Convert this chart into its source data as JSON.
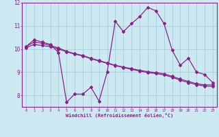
{
  "xlabel": "Windchill (Refroidissement éolien,°C)",
  "bg_color": "#cce8f0",
  "line_color": "#882288",
  "grid_color": "#aaccdd",
  "xlim": [
    -0.5,
    23.5
  ],
  "ylim": [
    7.5,
    12.0
  ],
  "yticks": [
    8,
    9,
    10,
    11,
    12
  ],
  "xticks": [
    0,
    1,
    2,
    3,
    4,
    5,
    6,
    7,
    8,
    9,
    10,
    11,
    12,
    13,
    14,
    15,
    16,
    17,
    18,
    19,
    20,
    21,
    22,
    23
  ],
  "line1": [
    10.1,
    10.4,
    10.3,
    10.2,
    9.85,
    7.7,
    8.05,
    8.05,
    8.35,
    7.75,
    9.0,
    11.2,
    10.75,
    11.1,
    11.4,
    11.8,
    11.65,
    11.1,
    9.95,
    9.3,
    9.6,
    9.0,
    8.9,
    8.55
  ],
  "line2": [
    10.1,
    10.3,
    10.25,
    10.15,
    10.05,
    9.9,
    9.8,
    9.72,
    9.6,
    9.5,
    9.4,
    9.3,
    9.22,
    9.15,
    9.08,
    9.02,
    8.98,
    8.93,
    8.82,
    8.7,
    8.6,
    8.5,
    8.45,
    8.45
  ],
  "line3": [
    10.05,
    10.2,
    10.15,
    10.1,
    10.0,
    9.88,
    9.78,
    9.7,
    9.58,
    9.48,
    9.38,
    9.28,
    9.2,
    9.12,
    9.05,
    8.98,
    8.94,
    8.88,
    8.78,
    8.65,
    8.55,
    8.46,
    8.4,
    8.38
  ]
}
